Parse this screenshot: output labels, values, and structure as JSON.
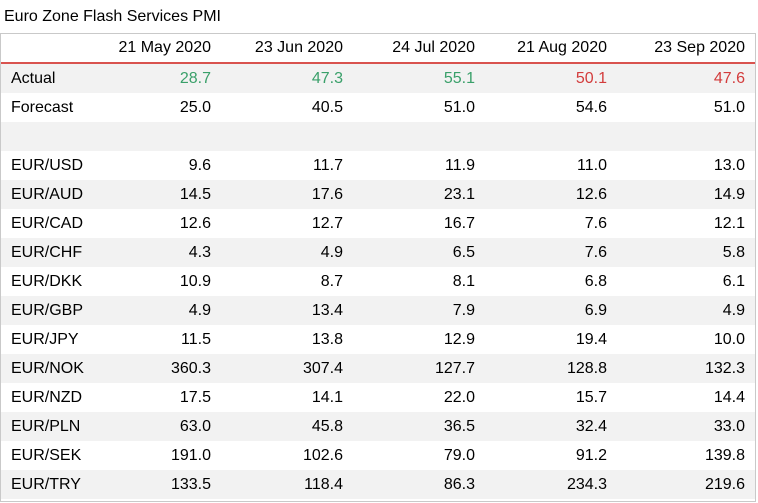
{
  "title": "Euro Zone Flash Services PMI",
  "columns": [
    "21 May 2020",
    "23 Jun 2020",
    "24 Jul 2020",
    "21 Aug 2020",
    "23 Sep 2020"
  ],
  "colors": {
    "positive": "#3aa06a",
    "negative": "#d33c3c",
    "header_rule": "#d9534f",
    "stripe": "#f2f2f2"
  },
  "actual": {
    "label": "Actual",
    "values": [
      {
        "v": "28.7",
        "tone": "up"
      },
      {
        "v": "47.3",
        "tone": "up"
      },
      {
        "v": "55.1",
        "tone": "up"
      },
      {
        "v": "50.1",
        "tone": "down"
      },
      {
        "v": "47.6",
        "tone": "down"
      }
    ]
  },
  "forecast": {
    "label": "Forecast",
    "values": [
      "25.0",
      "40.5",
      "51.0",
      "54.6",
      "51.0"
    ]
  },
  "pairs": [
    {
      "label": "EUR/USD",
      "values": [
        "9.6",
        "11.7",
        "11.9",
        "11.0",
        "13.0"
      ]
    },
    {
      "label": "EUR/AUD",
      "values": [
        "14.5",
        "17.6",
        "23.1",
        "12.6",
        "14.9"
      ]
    },
    {
      "label": "EUR/CAD",
      "values": [
        "12.6",
        "12.7",
        "16.7",
        "7.6",
        "12.1"
      ]
    },
    {
      "label": "EUR/CHF",
      "values": [
        "4.3",
        "4.9",
        "6.5",
        "7.6",
        "5.8"
      ]
    },
    {
      "label": "EUR/DKK",
      "values": [
        "10.9",
        "8.7",
        "8.1",
        "6.8",
        "6.1"
      ]
    },
    {
      "label": "EUR/GBP",
      "values": [
        "4.9",
        "13.4",
        "7.9",
        "6.9",
        "4.9"
      ]
    },
    {
      "label": "EUR/JPY",
      "values": [
        "11.5",
        "13.8",
        "12.9",
        "19.4",
        "10.0"
      ]
    },
    {
      "label": "EUR/NOK",
      "values": [
        "360.3",
        "307.4",
        "127.7",
        "128.8",
        "132.3"
      ]
    },
    {
      "label": "EUR/NZD",
      "values": [
        "17.5",
        "14.1",
        "22.0",
        "15.7",
        "14.4"
      ]
    },
    {
      "label": "EUR/PLN",
      "values": [
        "63.0",
        "45.8",
        "36.5",
        "32.4",
        "33.0"
      ]
    },
    {
      "label": "EUR/SEK",
      "values": [
        "191.0",
        "102.6",
        "79.0",
        "91.2",
        "139.8"
      ]
    },
    {
      "label": "EUR/TRY",
      "values": [
        "133.5",
        "118.4",
        "86.3",
        "234.3",
        "219.6"
      ]
    }
  ]
}
